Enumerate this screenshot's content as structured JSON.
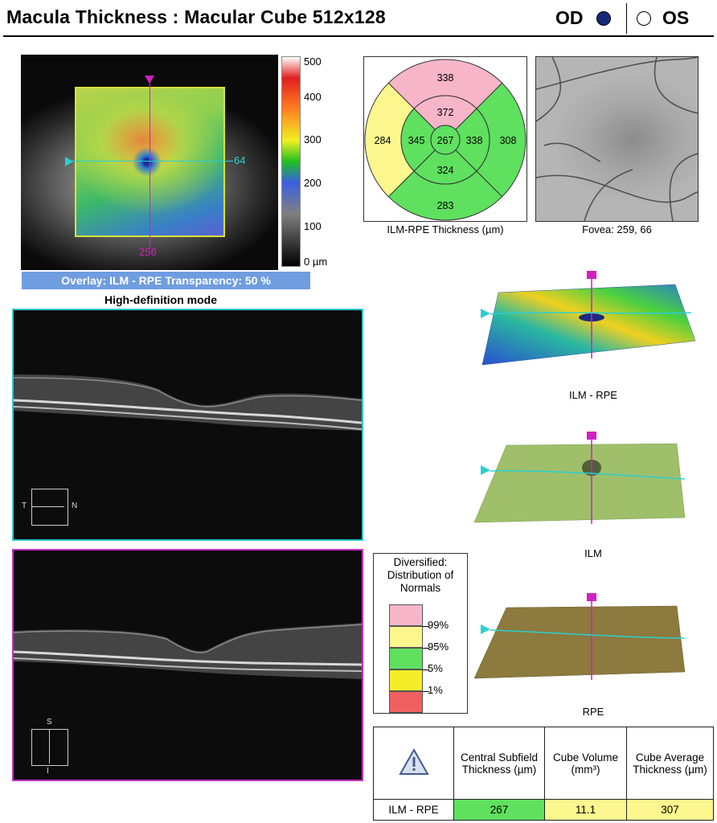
{
  "header": {
    "title": "Macula Thickness : Macular Cube 512x128",
    "od_label": "OD",
    "os_label": "OS",
    "selected_eye": "OD"
  },
  "thickness_map": {
    "scale_labels": [
      "500",
      "400",
      "300",
      "200",
      "100",
      "0 µm"
    ],
    "fovea_row_label": "64",
    "fovea_col_label": "256",
    "overlay_text": "Overlay: ILM - RPE  Transparency: 50 %",
    "mode_text": "High-definition mode"
  },
  "etdrs": {
    "caption": "ILM-RPE Thickness (µm)",
    "center": "267",
    "inner_superior": "372",
    "inner_nasal": "338",
    "inner_inferior": "324",
    "inner_temporal": "345",
    "outer_superior": "338",
    "outer_nasal": "308",
    "outer_inferior": "283",
    "outer_temporal": "284",
    "colors": {
      "pink": "#f7b6c8",
      "yellow": "#fbf68e",
      "green": "#5fe05f"
    }
  },
  "fundus_photo": {
    "caption": "Fovea: 259, 66"
  },
  "oct_scans": {
    "horizontal_orientation": {
      "left": "T",
      "right": "N"
    },
    "vertical_orientation": {
      "top": "S",
      "bottom": "I"
    }
  },
  "surfaces": {
    "ilm_rpe": "ILM - RPE",
    "ilm": "ILM",
    "rpe": "RPE"
  },
  "legend": {
    "title": "Diversified: Distribution of Normals",
    "entries": [
      {
        "label": "99%",
        "color": "#f7b6c8"
      },
      {
        "label": "95%",
        "color": "#fbf68e"
      },
      {
        "label": "5%",
        "color": "#5fe05f"
      },
      {
        "label": "1%",
        "color": "#f4ee2a"
      },
      {
        "label": "",
        "color": "#f06060"
      }
    ]
  },
  "summary_table": {
    "headers": [
      "Central Subfield Thickness (µm)",
      "Cube Volume (mm³)",
      "Cube Average Thickness (µm)"
    ],
    "row_label": "ILM - RPE",
    "values": [
      "267",
      "11.1",
      "307"
    ],
    "cell_colors": [
      "#5fe05f",
      "#fbf68e",
      "#fbf68e"
    ]
  }
}
